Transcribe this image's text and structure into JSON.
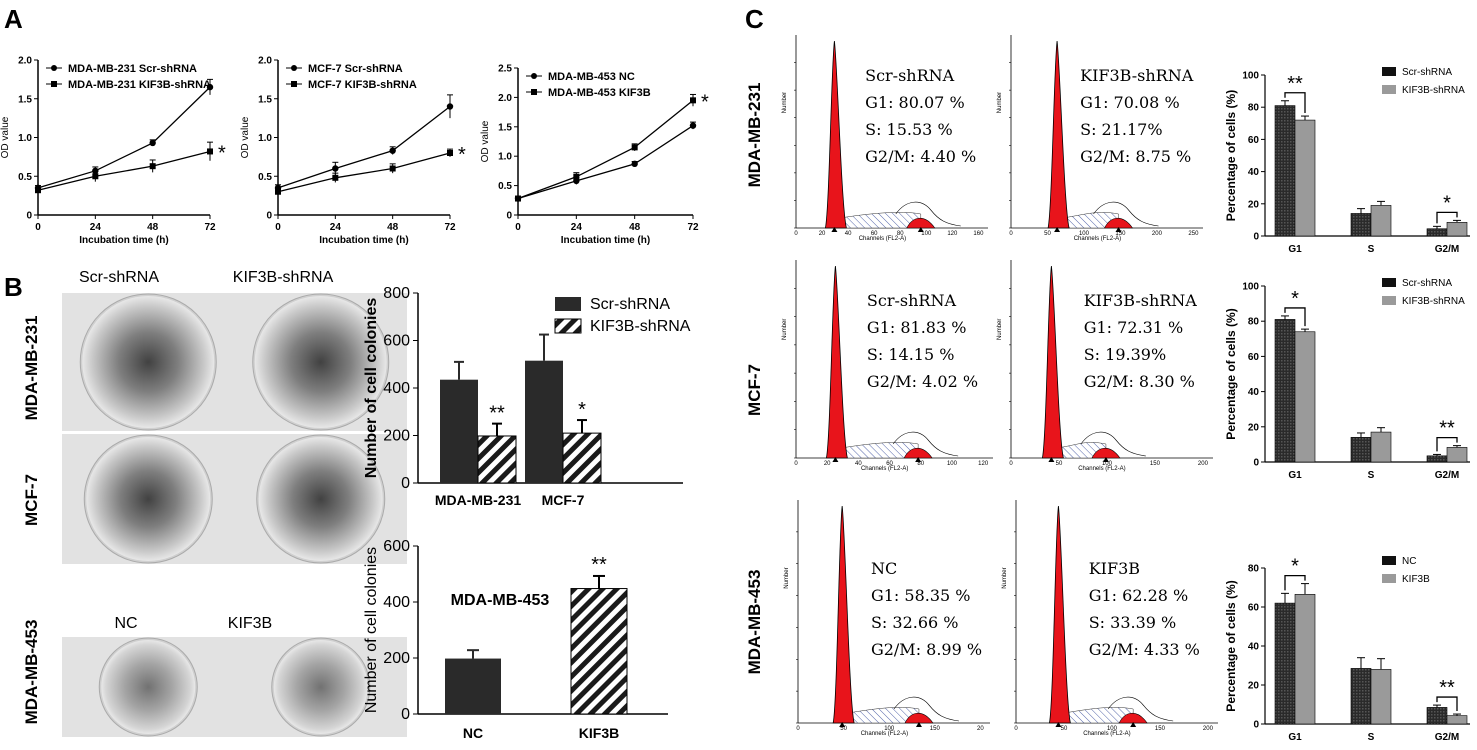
{
  "panel_labels": {
    "a": "A",
    "b": "B",
    "c": "C"
  },
  "chart_data": [
    {
      "id": "A1",
      "type": "line",
      "xlabel": "Incubation time (h)",
      "ylabel": "OD value",
      "x": [
        0,
        24,
        48,
        72
      ],
      "xticks": [
        "0",
        "24",
        "48",
        "72"
      ],
      "ylim": [
        0,
        2.0
      ],
      "yticks": [
        "0",
        "0.5",
        "1.0",
        "1.5",
        "2.0"
      ],
      "series": [
        {
          "name": "MDA-MB-231 Scr-shRNA",
          "marker": "circle",
          "values": [
            0.35,
            0.57,
            0.93,
            1.65
          ],
          "err": [
            0.03,
            0.05,
            0.04,
            0.1
          ]
        },
        {
          "name": "MDA-MB-231 KIF3B-shRNA",
          "marker": "square",
          "values": [
            0.32,
            0.5,
            0.63,
            0.82
          ],
          "err": [
            0.03,
            0.07,
            0.08,
            0.12
          ]
        }
      ],
      "sig": "*"
    },
    {
      "id": "A2",
      "type": "line",
      "xlabel": "Incubation time (h)",
      "ylabel": "OD value",
      "x": [
        0,
        24,
        48,
        72
      ],
      "xticks": [
        "0",
        "24",
        "48",
        "72"
      ],
      "ylim": [
        0,
        2.0
      ],
      "yticks": [
        "0",
        "0.5",
        "1.0",
        "1.5",
        "2.0"
      ],
      "series": [
        {
          "name": "MCF-7 Scr-shRNA",
          "marker": "circle",
          "values": [
            0.35,
            0.6,
            0.83,
            1.4
          ],
          "err": [
            0.04,
            0.08,
            0.05,
            0.15
          ]
        },
        {
          "name": "MCF-7 KIF3B-shRNA",
          "marker": "square",
          "values": [
            0.3,
            0.48,
            0.6,
            0.8
          ],
          "err": [
            0.03,
            0.06,
            0.06,
            0.05
          ]
        }
      ],
      "sig": "*"
    },
    {
      "id": "A3",
      "type": "line",
      "xlabel": "Incubation time (h)",
      "ylabel": "OD value",
      "x": [
        0,
        24,
        48,
        72
      ],
      "xticks": [
        "0",
        "24",
        "48",
        "72"
      ],
      "ylim": [
        0,
        2.5
      ],
      "yticks": [
        "0",
        "0.5",
        "1.0",
        "1.5",
        "2.0",
        "2.5"
      ],
      "series": [
        {
          "name": "MDA-MB-453 NC",
          "marker": "circle",
          "values": [
            0.28,
            0.58,
            0.87,
            1.52
          ],
          "err": [
            0.03,
            0.06,
            0.04,
            0.06
          ]
        },
        {
          "name": "MDA-MB-453 KIF3B",
          "marker": "square",
          "values": [
            0.28,
            0.65,
            1.15,
            1.95
          ],
          "err": [
            0.03,
            0.07,
            0.06,
            0.1
          ]
        }
      ],
      "sig": "*"
    },
    {
      "id": "B1",
      "type": "bar",
      "ylabel": "Number of cell colonies",
      "categories": [
        "MDA-MB-231",
        "MCF-7"
      ],
      "ylim": [
        0,
        800
      ],
      "yticks": [
        "0",
        "200",
        "400",
        "600",
        "800"
      ],
      "series": [
        {
          "name": "Scr-shRNA",
          "values": [
            435,
            515
          ],
          "err": [
            75,
            110
          ]
        },
        {
          "name": "KIF3B-shRNA",
          "values": [
            198,
            210
          ],
          "err": [
            52,
            55
          ]
        }
      ],
      "sig": [
        "**",
        "*"
      ]
    },
    {
      "id": "B2",
      "type": "bar",
      "title": "MDA-MB-453",
      "ylabel": "Number of cell colonies",
      "categories": [
        "NC",
        "KIF3B"
      ],
      "ylim": [
        0,
        600
      ],
      "yticks": [
        "0",
        "200",
        "400",
        "600"
      ],
      "values": [
        198,
        448
      ],
      "err": [
        30,
        45
      ],
      "sig": "**"
    },
    {
      "id": "C1",
      "type": "bar",
      "ylabel": "Percentage of cells (%)",
      "categories": [
        "G1",
        "S",
        "G2/M"
      ],
      "ylim": [
        0,
        100
      ],
      "yticks": [
        "0",
        "20",
        "40",
        "60",
        "80",
        "100"
      ],
      "series": [
        {
          "name": "Scr-shRNA",
          "values": [
            81,
            14,
            4.5
          ],
          "err": [
            3,
            3,
            1.5
          ]
        },
        {
          "name": "KIF3B-shRNA",
          "values": [
            72,
            19,
            8.5
          ],
          "err": [
            2.5,
            2.5,
            1.2
          ]
        }
      ],
      "sig": [
        "**",
        "",
        "*"
      ]
    },
    {
      "id": "C2",
      "type": "bar",
      "ylabel": "Percentage of cells (%)",
      "categories": [
        "G1",
        "S",
        "G2/M"
      ],
      "ylim": [
        0,
        100
      ],
      "yticks": [
        "0",
        "20",
        "40",
        "60",
        "80",
        "100"
      ],
      "series": [
        {
          "name": "Scr-shRNA",
          "values": [
            81,
            14,
            3.5
          ],
          "err": [
            2,
            2.5,
            0.8
          ]
        },
        {
          "name": "KIF3B-shRNA",
          "values": [
            74,
            17,
            8.3
          ],
          "err": [
            1.5,
            2.5,
            1
          ]
        }
      ],
      "sig": [
        "*",
        "",
        "**"
      ]
    },
    {
      "id": "C3",
      "type": "bar",
      "ylabel": "Percentage of cells (%)",
      "categories": [
        "G1",
        "S",
        "G2/M"
      ],
      "ylim": [
        0,
        80
      ],
      "yticks": [
        "0",
        "20",
        "40",
        "60",
        "80"
      ],
      "series": [
        {
          "name": "NC",
          "values": [
            62,
            28.5,
            8.5
          ],
          "err": [
            5,
            5.5,
            1.2
          ]
        },
        {
          "name": "KIF3B",
          "values": [
            66.5,
            28,
            4.3
          ],
          "err": [
            5.5,
            5.5,
            0.8
          ]
        }
      ],
      "sig": [
        "*",
        "",
        "**"
      ]
    }
  ],
  "colony": {
    "row_labels": [
      "MDA-MB-231",
      "MCF-7",
      "MDA-MB-453"
    ],
    "col_top": [
      "Scr-shRNA",
      "KIF3B-shRNA"
    ],
    "col_bottom": [
      "NC",
      "KIF3B"
    ]
  },
  "flow": {
    "row_labels": [
      "MDA-MB-231",
      "MCF-7",
      "MDA-MB-453"
    ],
    "y_axis_label": "Number",
    "x_axis_label": "Channels (FL2-A)",
    "panels": [
      {
        "name": "Scr-shRNA",
        "g1": "G1: 80.07 %",
        "s": "S: 15.53 %",
        "g2m": "G2/M: 4.40 %",
        "xticks": [
          "0",
          "20",
          "40",
          "60",
          "80",
          "100",
          "120",
          "160"
        ]
      },
      {
        "name": "KIF3B-shRNA",
        "g1": "G1: 70.08 %",
        "s": "S:  21.17%",
        "g2m": "G2/M: 8.75 %",
        "xticks": [
          "0",
          "50",
          "100",
          "150",
          "200",
          "250"
        ]
      },
      {
        "name": "Scr-shRNA",
        "g1": "G1: 81.83 %",
        "s": "S: 14.15 %",
        "g2m": "G2/M: 4.02 %",
        "xticks": [
          "0",
          "20",
          "40",
          "60",
          "80",
          "100",
          "120"
        ]
      },
      {
        "name": "KIF3B-shRNA",
        "g1": "G1: 72.31 %",
        "s": "S: 19.39%",
        "g2m": "G2/M: 8.30 %",
        "xticks": [
          "0",
          "50",
          "100",
          "150",
          "200"
        ]
      },
      {
        "name": "NC",
        "g1": "G1: 58.35 %",
        "s": "S: 32.66 %",
        "g2m": "G2/M: 8.99 %",
        "xticks": [
          "0",
          "50",
          "100",
          "150",
          "20"
        ]
      },
      {
        "name": "KIF3B",
        "g1": "G1: 62.28 %",
        "s": "S: 33.39 %",
        "g2m": "G2/M: 4.33 %",
        "xticks": [
          "0",
          "50",
          "100",
          "150",
          "200"
        ]
      }
    ]
  },
  "colors": {
    "dark": "#2a2a2a",
    "light": "#9a9a9a",
    "red": "#e8141b",
    "hatch": "#1a1a1a"
  }
}
